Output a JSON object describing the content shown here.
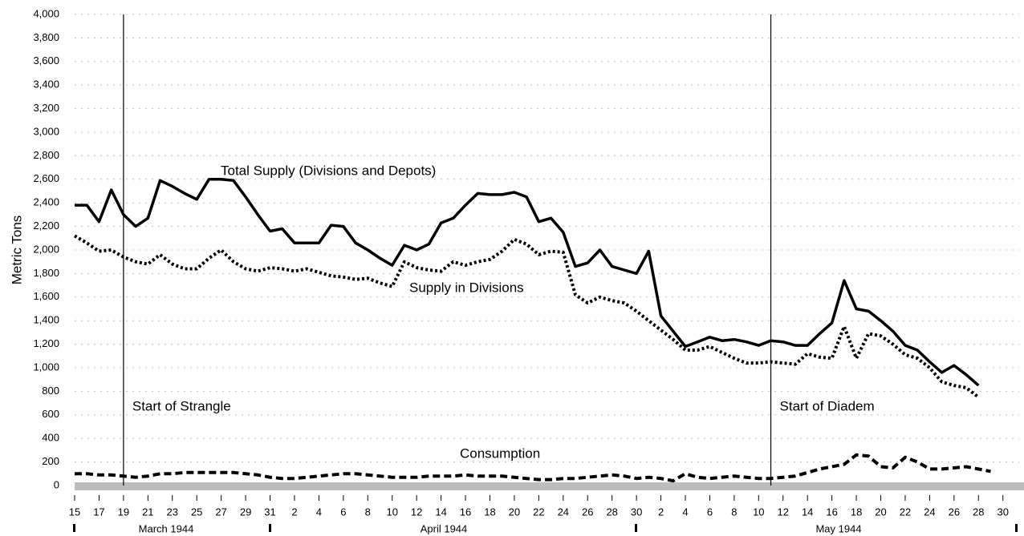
{
  "chart_data": {
    "type": "line",
    "y_label": "Metric Tons",
    "categories": [
      "15",
      null,
      "17",
      null,
      "19",
      null,
      "21",
      null,
      "23",
      null,
      "25",
      null,
      "27",
      null,
      "29",
      null,
      "31",
      null,
      "2",
      null,
      "4",
      null,
      "6",
      null,
      "8",
      null,
      "10",
      null,
      "12",
      null,
      "14",
      null,
      "16",
      null,
      "18",
      null,
      "20",
      null,
      "22",
      null,
      "24",
      null,
      "26",
      null,
      "28",
      null,
      "30",
      null,
      "2",
      null,
      "4",
      null,
      "6",
      null,
      "8",
      null,
      "10",
      null,
      "12",
      null,
      "14",
      null,
      "16",
      null,
      "18",
      null,
      "20",
      null,
      "22",
      null,
      "24",
      null,
      "26",
      null,
      "28",
      null,
      "30"
    ],
    "months": [
      "March 1944",
      "April 1944",
      "May 1944"
    ],
    "events": [
      {
        "label": "Start of Strangle",
        "index": 4
      },
      {
        "label": "Start of Diadem",
        "index": 57
      }
    ],
    "ylim": [
      0,
      4000
    ],
    "yticks": [
      0,
      200,
      400,
      600,
      800,
      {
        "value": 1000,
        "label": "1,000"
      },
      {
        "value": 1200,
        "label": "1,200"
      },
      {
        "value": 1400,
        "label": "1,400"
      },
      {
        "value": 1600,
        "label": "1,600"
      },
      {
        "value": 1800,
        "label": "1,800"
      },
      {
        "value": 2000,
        "label": "2,000"
      },
      {
        "value": 2200,
        "label": "2,200"
      },
      {
        "value": 2400,
        "label": "2,400"
      },
      {
        "value": 2600,
        "label": "2,600"
      },
      {
        "value": 2800,
        "label": "2,800"
      },
      {
        "value": 3000,
        "label": "3,000"
      },
      {
        "value": 3200,
        "label": "3,200"
      },
      {
        "value": 3400,
        "label": "3,400"
      },
      {
        "value": 3600,
        "label": "3,600"
      },
      {
        "value": 3800,
        "label": "3,800"
      },
      {
        "value": 4000,
        "label": "4,000"
      }
    ],
    "grid": true,
    "series": [
      {
        "name": "Total Supply (Divisions and Depots)",
        "color": "#000",
        "style": "solid",
        "values": [
          2380,
          2380,
          2240,
          2510,
          2300,
          2200,
          2270,
          2590,
          2540,
          2480,
          2430,
          2600,
          2600,
          2590,
          2450,
          2300,
          2160,
          2180,
          2060,
          2060,
          2060,
          2210,
          2200,
          2060,
          2000,
          1930,
          1870,
          2040,
          2000,
          2050,
          2230,
          2270,
          2380,
          2480,
          2470,
          2470,
          2490,
          2450,
          2240,
          2270,
          2150,
          1860,
          1890,
          2000,
          1860,
          1830,
          1800,
          1990,
          1440,
          1310,
          1180,
          1220,
          1260,
          1230,
          1240,
          1220,
          1190,
          1230,
          1220,
          1190,
          1190,
          1290,
          1380,
          1740,
          1500,
          1480,
          1400,
          1310,
          1190,
          1150,
          1050,
          960,
          1020,
          940,
          850,
          null,
          null
        ]
      },
      {
        "name": "Supply  in Divisions",
        "color": "#000",
        "style": "dotted",
        "values": [
          2120,
          2060,
          1990,
          2000,
          1940,
          1900,
          1880,
          1960,
          1880,
          1840,
          1840,
          1930,
          2000,
          1900,
          1840,
          1820,
          1850,
          1840,
          1820,
          1840,
          1810,
          1780,
          1770,
          1750,
          1760,
          1720,
          1690,
          1900,
          1850,
          1830,
          1820,
          1900,
          1870,
          1900,
          1920,
          1990,
          2090,
          2050,
          1960,
          1990,
          1980,
          1620,
          1550,
          1600,
          1570,
          1550,
          1480,
          1400,
          1320,
          1240,
          1150,
          1150,
          1180,
          1130,
          1080,
          1040,
          1040,
          1050,
          1040,
          1030,
          1120,
          1090,
          1080,
          1350,
          1080,
          1290,
          1270,
          1200,
          1110,
          1080,
          1000,
          880,
          850,
          830,
          750,
          null,
          null
        ]
      },
      {
        "name": "Consumption",
        "color": "#000",
        "style": "dashed",
        "values": [
          100,
          100,
          90,
          90,
          80,
          70,
          80,
          100,
          100,
          110,
          110,
          110,
          110,
          110,
          100,
          90,
          70,
          60,
          60,
          70,
          80,
          90,
          100,
          100,
          90,
          80,
          70,
          70,
          70,
          80,
          80,
          80,
          90,
          80,
          80,
          80,
          70,
          60,
          50,
          50,
          60,
          60,
          70,
          80,
          90,
          80,
          60,
          70,
          60,
          40,
          100,
          70,
          60,
          70,
          80,
          70,
          60,
          60,
          70,
          80,
          110,
          140,
          160,
          180,
          260,
          250,
          160,
          150,
          240,
          200,
          140,
          140,
          150,
          160,
          140,
          120,
          null
        ]
      }
    ]
  }
}
